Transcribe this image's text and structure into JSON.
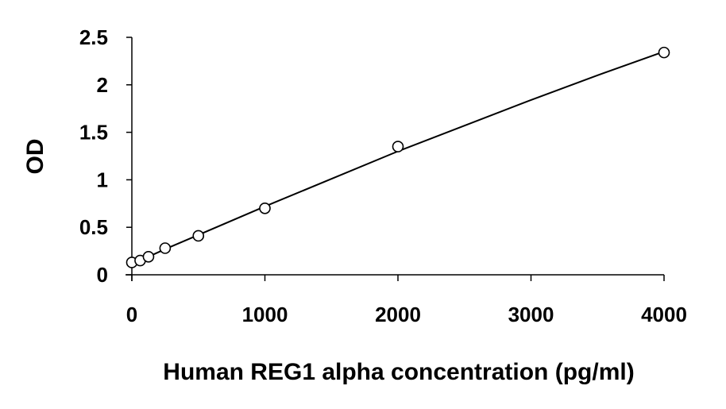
{
  "chart_data": {
    "type": "scatter",
    "title": "",
    "xlabel": "Human REG1 alpha concentration (pg/ml)",
    "ylabel": "OD",
    "xlim": [
      0,
      4000
    ],
    "ylim": [
      0,
      2.5
    ],
    "x_ticks": [
      "0",
      "1000",
      "2000",
      "3000",
      "4000"
    ],
    "y_ticks": [
      "0",
      "0.5",
      "1",
      "1.5",
      "2",
      "2.5"
    ],
    "grid": false,
    "legend": "none",
    "series": [
      {
        "marker": "open-circle",
        "points": [
          {
            "x": 0,
            "y": 0.13
          },
          {
            "x": 62.5,
            "y": 0.15
          },
          {
            "x": 125,
            "y": 0.19
          },
          {
            "x": 250,
            "y": 0.28
          },
          {
            "x": 500,
            "y": 0.41
          },
          {
            "x": 1000,
            "y": 0.7
          },
          {
            "x": 2000,
            "y": 1.35
          },
          {
            "x": 4000,
            "y": 2.34
          }
        ]
      }
    ],
    "fit_curve": {
      "style": "solid-black",
      "points": [
        {
          "x": 0,
          "y": 0.11
        },
        {
          "x": 250,
          "y": 0.27
        },
        {
          "x": 500,
          "y": 0.42
        },
        {
          "x": 1000,
          "y": 0.72
        },
        {
          "x": 1500,
          "y": 1.01
        },
        {
          "x": 2000,
          "y": 1.3
        },
        {
          "x": 2500,
          "y": 1.57
        },
        {
          "x": 3000,
          "y": 1.84
        },
        {
          "x": 3500,
          "y": 2.1
        },
        {
          "x": 4000,
          "y": 2.35
        }
      ]
    },
    "colors": {
      "axis": "#000000",
      "marker": "#000000",
      "curve": "#000000",
      "background": "#ffffff"
    }
  }
}
